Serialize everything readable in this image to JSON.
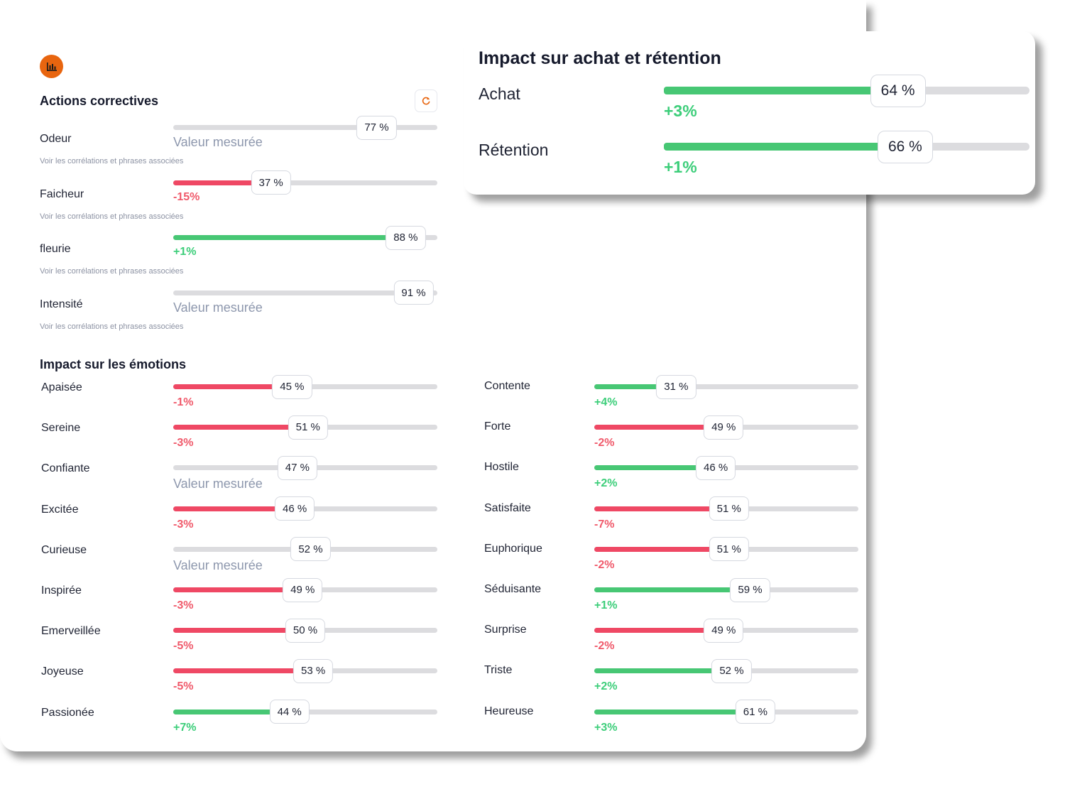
{
  "app": {
    "icon": "bar-chart-icon",
    "refresh_icon": "refresh-icon",
    "accent": "#e8650f"
  },
  "colors": {
    "negative": "#ef4864",
    "positive": "#47c774",
    "track": "#dcdcdf",
    "muted": "#8d97ad"
  },
  "corrective": {
    "title": "Actions correctives",
    "link_text": "Voir les corrélations et phrases associées",
    "items": [
      {
        "label": "Odeur",
        "value": 77,
        "value_text": "77 %",
        "delta_text": "Valeur mesurée",
        "kind": "measured",
        "fill": "none"
      },
      {
        "label": "Faicheur",
        "value": 37,
        "value_text": "37 %",
        "delta_text": "-15%",
        "kind": "neg",
        "fill": "red"
      },
      {
        "label": "fleurie",
        "value": 88,
        "value_text": "88 %",
        "delta_text": "+1%",
        "kind": "pos",
        "fill": "green"
      },
      {
        "label": "Intensité",
        "value": 91,
        "value_text": "91 %",
        "delta_text": "Valeur mesurée",
        "kind": "measured",
        "fill": "none"
      }
    ]
  },
  "emotions": {
    "title": "Impact sur les émotions",
    "left": [
      {
        "label": "Apaisée",
        "value": 45,
        "value_text": "45 %",
        "delta_text": "-1%",
        "kind": "neg",
        "fill": "red"
      },
      {
        "label": "Sereine",
        "value": 51,
        "value_text": "51 %",
        "delta_text": "-3%",
        "kind": "neg",
        "fill": "red"
      },
      {
        "label": "Confiante",
        "value": 47,
        "value_text": "47 %",
        "delta_text": "Valeur mesurée",
        "kind": "measured",
        "fill": "none"
      },
      {
        "label": "Excitée",
        "value": 46,
        "value_text": "46 %",
        "delta_text": "-3%",
        "kind": "neg",
        "fill": "red"
      },
      {
        "label": "Curieuse",
        "value": 52,
        "value_text": "52 %",
        "delta_text": "Valeur mesurée",
        "kind": "measured",
        "fill": "none"
      },
      {
        "label": "Inspirée",
        "value": 49,
        "value_text": "49 %",
        "delta_text": "-3%",
        "kind": "neg",
        "fill": "red"
      },
      {
        "label": "Emerveillée",
        "value": 50,
        "value_text": "50 %",
        "delta_text": "-5%",
        "kind": "neg",
        "fill": "red"
      },
      {
        "label": "Joyeuse",
        "value": 53,
        "value_text": "53 %",
        "delta_text": "-5%",
        "kind": "neg",
        "fill": "red"
      },
      {
        "label": "Passionée",
        "value": 44,
        "value_text": "44 %",
        "delta_text": "+7%",
        "kind": "pos",
        "fill": "green"
      }
    ],
    "right": [
      {
        "label": "Contente",
        "value": 31,
        "value_text": "31 %",
        "delta_text": "+4%",
        "kind": "pos",
        "fill": "green"
      },
      {
        "label": "Forte",
        "value": 49,
        "value_text": "49 %",
        "delta_text": "-2%",
        "kind": "neg",
        "fill": "red"
      },
      {
        "label": "Hostile",
        "value": 46,
        "value_text": "46 %",
        "delta_text": "+2%",
        "kind": "pos",
        "fill": "green"
      },
      {
        "label": "Satisfaite",
        "value": 51,
        "value_text": "51 %",
        "delta_text": "-7%",
        "kind": "neg",
        "fill": "red"
      },
      {
        "label": "Euphorique",
        "value": 51,
        "value_text": "51 %",
        "delta_text": "-2%",
        "kind": "neg",
        "fill": "red"
      },
      {
        "label": "Séduisante",
        "value": 59,
        "value_text": "59 %",
        "delta_text": "+1%",
        "kind": "pos",
        "fill": "green"
      },
      {
        "label": "Surprise",
        "value": 49,
        "value_text": "49 %",
        "delta_text": "-2%",
        "kind": "neg",
        "fill": "red"
      },
      {
        "label": "Triste",
        "value": 52,
        "value_text": "52 %",
        "delta_text": "+2%",
        "kind": "pos",
        "fill": "green"
      },
      {
        "label": "Heureuse",
        "value": 61,
        "value_text": "61 %",
        "delta_text": "+3%",
        "kind": "pos",
        "fill": "green"
      }
    ]
  },
  "purchase": {
    "title": "Impact sur achat et rétention",
    "items": [
      {
        "label": "Achat",
        "value": 64,
        "value_text": "64 %",
        "delta_text": "+3%"
      },
      {
        "label": "Rétention",
        "value": 66,
        "value_text": "66 %",
        "delta_text": "+1%"
      }
    ]
  }
}
